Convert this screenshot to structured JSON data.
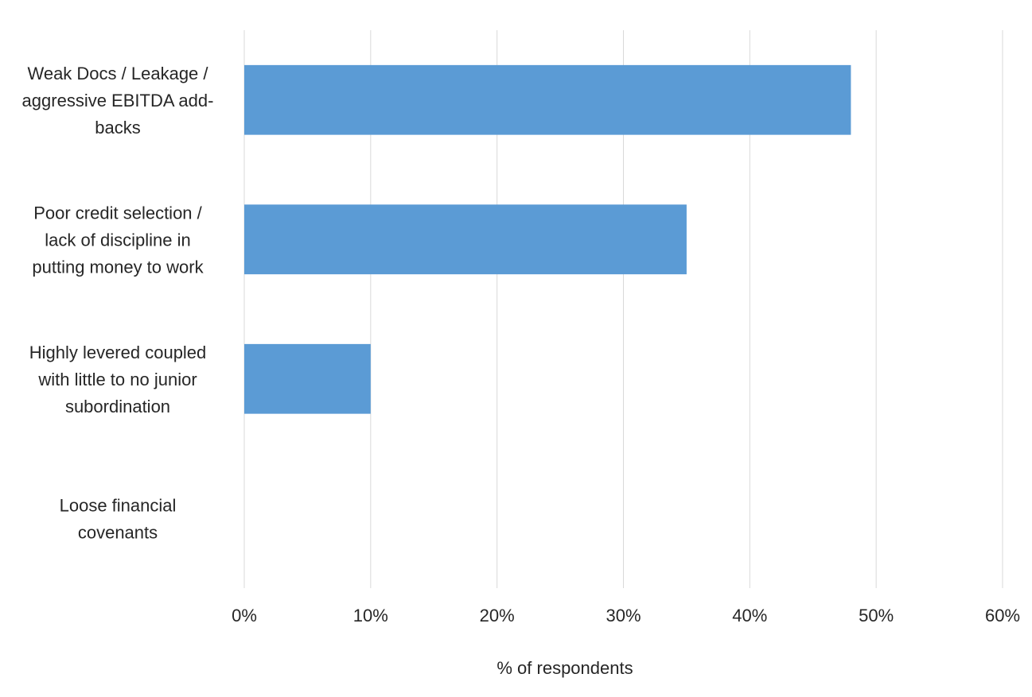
{
  "chart_data": {
    "type": "bar",
    "orientation": "horizontal",
    "categories": [
      [
        "Weak Docs / Leakage /",
        "aggressive EBITDA add-",
        "backs"
      ],
      [
        "Poor credit selection /",
        "lack of discipline in",
        "putting money to work"
      ],
      [
        "Highly levered coupled",
        "with little to no junior",
        "subordination"
      ],
      [
        "Loose financial",
        "covenants"
      ]
    ],
    "values": [
      48,
      35,
      10,
      0
    ],
    "xlabel": "% of respondents",
    "ylabel": "",
    "xlim": [
      0,
      60
    ],
    "ticks": [
      "0%",
      "10%",
      "20%",
      "30%",
      "40%",
      "50%",
      "60%"
    ],
    "grid": true,
    "legend": "none",
    "bar_color": "#5b9bd5"
  }
}
